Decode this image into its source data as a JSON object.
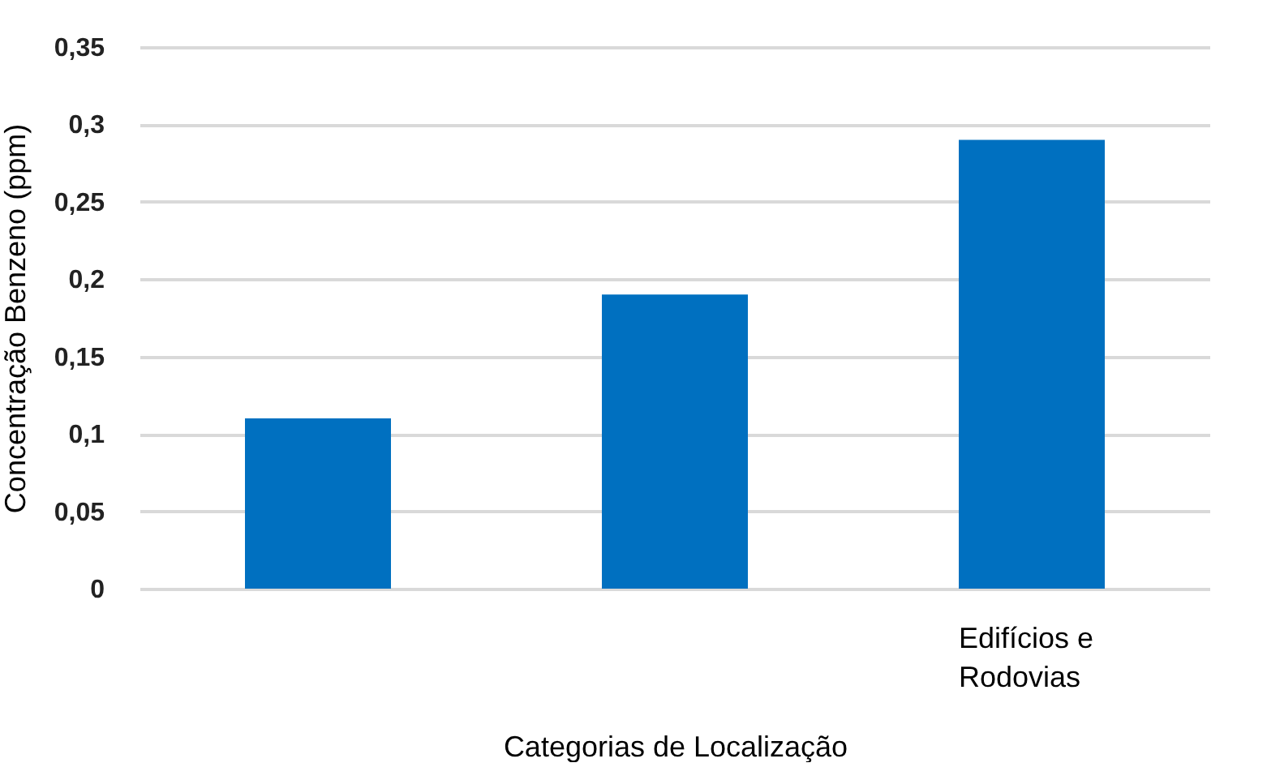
{
  "chart_data": {
    "type": "bar",
    "xlabel": "Categorias de Localização",
    "ylabel": "Concentração Benzeno (ppm)",
    "categories": [
      null,
      null,
      "Edifícios e Rodovias"
    ],
    "values": [
      0.11,
      0.19,
      0.29
    ],
    "color": "#0070c0",
    "ylim": [
      0,
      0.35
    ],
    "yticks": [
      0,
      {
        "value": 0.05,
        "label": "0,05"
      },
      {
        "value": 0.1,
        "label": "0,1"
      },
      {
        "value": 0.15,
        "label": "0,15"
      },
      {
        "value": 0.2,
        "label": "0,2"
      },
      {
        "value": 0.25,
        "label": "0,25"
      },
      {
        "value": 0.3,
        "label": "0,3"
      },
      {
        "value": 0.35,
        "label": "0,35"
      }
    ],
    "grid": true
  }
}
